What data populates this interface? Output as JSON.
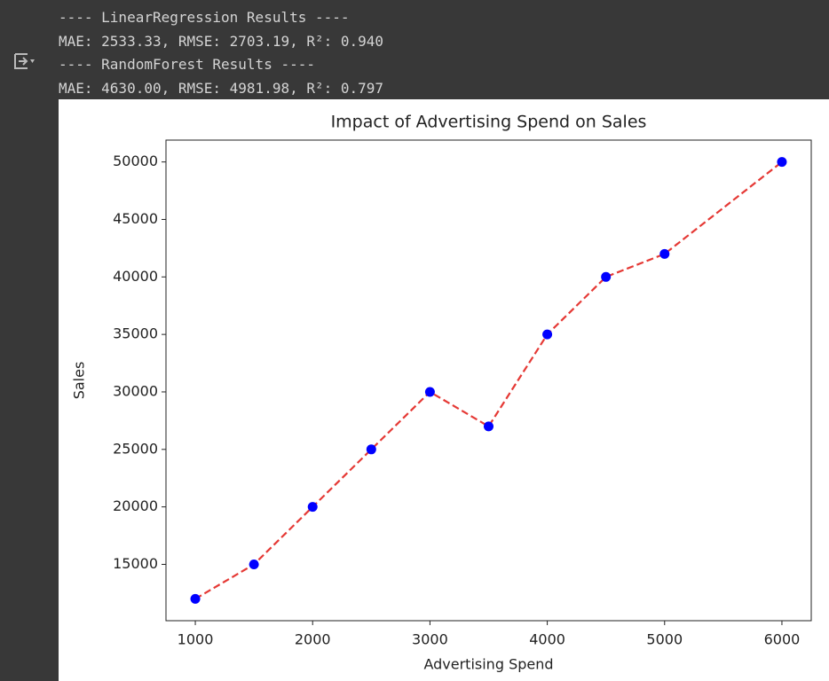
{
  "output": {
    "lines": [
      "---- LinearRegression Results ----",
      "MAE: 2533.33, RMSE: 2703.19, R²: 0.940",
      "---- RandomForest Results ----",
      "MAE: 4630.00, RMSE: 4981.98, R²: 0.797"
    ]
  },
  "chart_data": {
    "type": "line",
    "title": "Impact of Advertising Spend on Sales",
    "x_label": "Advertising Spend",
    "y_label": "Sales",
    "x": [
      1000,
      1500,
      2000,
      2500,
      3000,
      3500,
      4000,
      4500,
      5000,
      6000
    ],
    "values": [
      12000,
      15000,
      20000,
      25000,
      30000,
      27000,
      35000,
      40000,
      42000,
      50000
    ],
    "line_color": "#e53935",
    "line_style": "dashed",
    "marker_color": "#0000ff",
    "xlim": [
      750,
      6250
    ],
    "xticks": [
      1000,
      2000,
      3000,
      4000,
      5000,
      6000
    ],
    "ylim": [
      10100,
      51900
    ],
    "yticks": [
      15000,
      20000,
      25000,
      30000,
      35000,
      40000,
      45000,
      50000
    ],
    "grid": false
  }
}
